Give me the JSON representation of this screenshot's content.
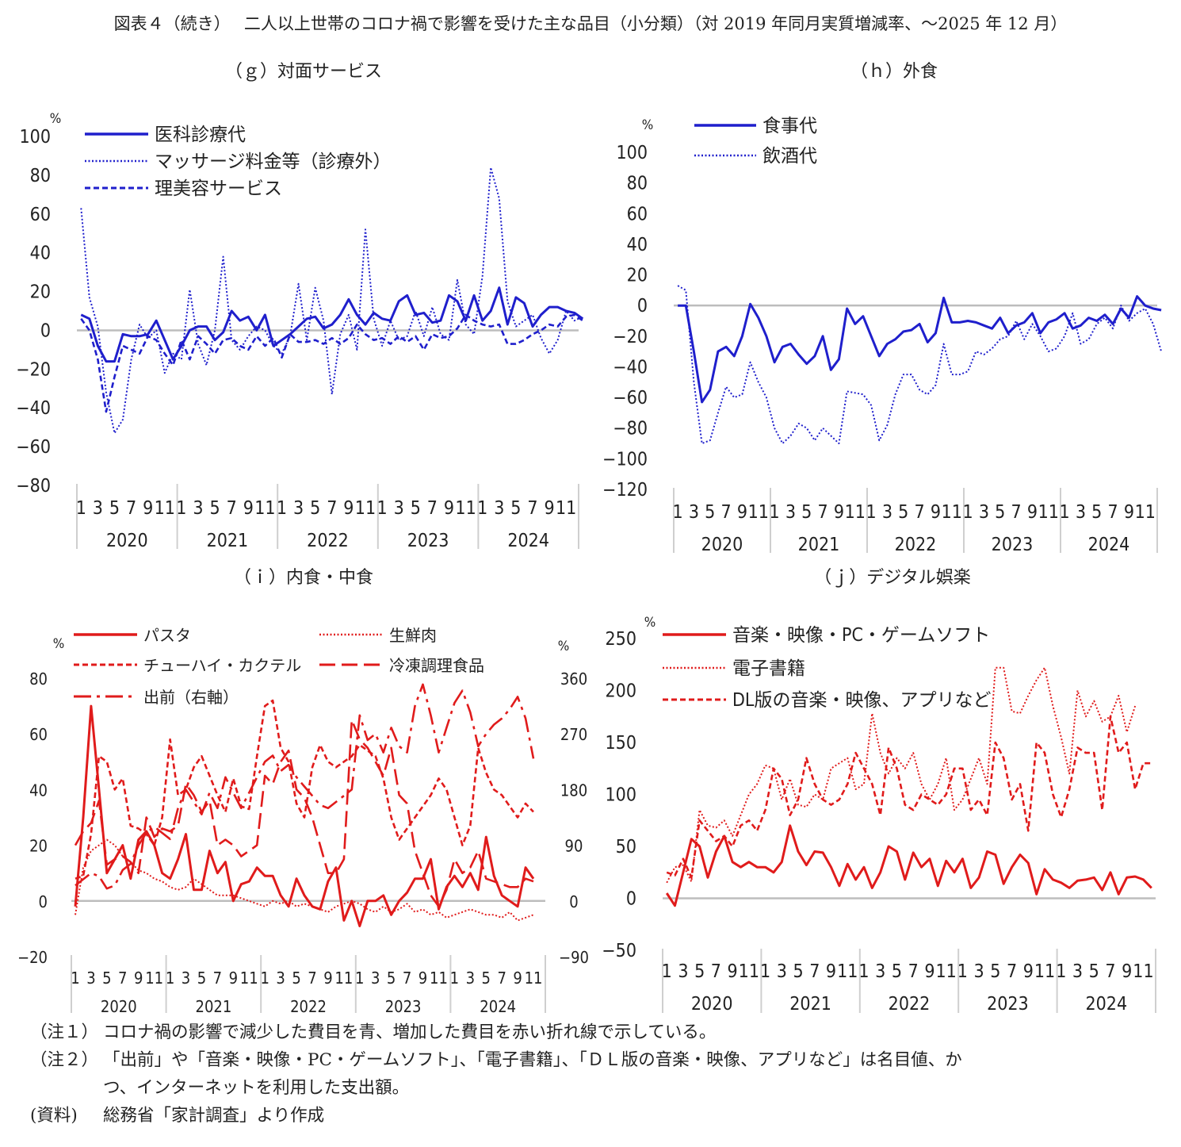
{
  "figure_title": "図表４（続き）　 二人以上世帯のコロナ禍で影響を受けた主な品目（小分類）（対 2019 年同月実質増減率、～2025 年 12 月）",
  "panels": {
    "g": {
      "title": "（ｇ）対面サービス"
    },
    "h": {
      "title": "（ｈ）外食"
    },
    "i": {
      "title": "（ｉ）内食・中食"
    },
    "j": {
      "title": "（ｊ）デジタル娯楽"
    }
  },
  "notes": [
    {
      "label": "（注１）",
      "text": "コロナ禍の影響で減少した費目を青、増加した費目を赤い折れ線で示している。"
    },
    {
      "label": "（注２）",
      "text": "「出前」や「音楽・映像・PC・ゲームソフト」、「電子書籍」、「ＤＬ版の音楽・映像、アプリなど」は名目値、か",
      "cont": "つ、インターネットを利用した支出額。"
    },
    {
      "label": "(資料)",
      "text": "総務省「家計調査」より作成"
    }
  ],
  "colors": {
    "decrease": "#1f1fcc",
    "increase": "#e01b1b"
  },
  "chart_data": [
    {
      "id": "g",
      "type": "line",
      "title": "（ｇ）対面サービス",
      "ylabel": "%",
      "ylim": [
        -80,
        100
      ],
      "ytick_step": 20,
      "years": [
        "2020",
        "2021",
        "2022",
        "2023",
        "2024"
      ],
      "month_ticks": [
        "1",
        "3",
        "5",
        "7",
        "9",
        "11"
      ],
      "legend_position": "top-left",
      "series": [
        {
          "name": "医科診療代",
          "style": "solid",
          "values": [
            8,
            6,
            -8,
            -16,
            -16,
            -2,
            -3,
            -3,
            -2,
            5,
            -5,
            -15,
            -8,
            0,
            2,
            2,
            -5,
            -1,
            10,
            5,
            7,
            0,
            8,
            -8,
            -5,
            -2,
            2,
            6,
            7,
            1,
            3,
            8,
            16,
            8,
            3,
            9,
            6,
            5,
            15,
            18,
            8,
            9,
            4,
            5,
            18,
            15,
            5,
            18,
            5,
            10,
            22,
            3,
            17,
            14,
            2,
            8,
            12,
            12,
            10,
            9,
            6
          ]
        },
        {
          "name": "マッサージ料金等（診療外）",
          "style": "dotted",
          "values": [
            63,
            17,
            2,
            -32,
            -53,
            -46,
            -15,
            3,
            -4,
            0,
            -22,
            -12,
            -15,
            21,
            -7,
            -18,
            0,
            38,
            -5,
            -10,
            -3,
            2,
            0,
            -8,
            -12,
            -3,
            24,
            -5,
            22,
            5,
            -33,
            -2,
            8,
            -10,
            52,
            6,
            -8,
            5,
            -5,
            -3,
            10,
            -3,
            12,
            -2,
            -5,
            26,
            3,
            -2,
            28,
            84,
            68,
            15,
            2,
            5,
            8,
            -4,
            -12,
            -5,
            10,
            5,
            7
          ]
        },
        {
          "name": "理美容サービス",
          "style": "dashed",
          "values": [
            6,
            0,
            -15,
            -42,
            -24,
            -8,
            -10,
            -12,
            -3,
            -5,
            -12,
            -18,
            -5,
            -15,
            -3,
            -7,
            -12,
            -5,
            -4,
            -8,
            -10,
            -3,
            -8,
            -4,
            -14,
            -2,
            -6,
            -6,
            -5,
            -7,
            -4,
            -7,
            -4,
            3,
            -2,
            -5,
            -4,
            -7,
            -3,
            -6,
            -3,
            -10,
            -2,
            -4,
            -3,
            1,
            8,
            5,
            3,
            2,
            3,
            -7,
            -7,
            -5,
            -2,
            0,
            3,
            2,
            7,
            8,
            5
          ]
        }
      ]
    },
    {
      "id": "h",
      "type": "line",
      "title": "（ｈ）外食",
      "ylabel": "%",
      "ylim": [
        -120,
        100
      ],
      "ytick_step": 20,
      "years": [
        "2020",
        "2021",
        "2022",
        "2023",
        "2024"
      ],
      "month_ticks": [
        "1",
        "3",
        "5",
        "7",
        "9",
        "11"
      ],
      "legend_position": "top-left",
      "series": [
        {
          "name": "食事代",
          "style": "solid",
          "values": [
            0,
            0,
            -30,
            -63,
            -55,
            -30,
            -27,
            -33,
            -20,
            1,
            -8,
            -20,
            -37,
            -27,
            -25,
            -32,
            -38,
            -33,
            -20,
            -42,
            -35,
            -2,
            -12,
            -7,
            -20,
            -33,
            -25,
            -22,
            -17,
            -16,
            -12,
            -24,
            -18,
            5,
            -11,
            -11,
            -10,
            -11,
            -13,
            -15,
            -8,
            -18,
            -13,
            -11,
            -5,
            -18,
            -11,
            -9,
            -5,
            -15,
            -13,
            -8,
            -10,
            -6,
            -12,
            -2,
            -8,
            6,
            0,
            -2,
            -3
          ]
        },
        {
          "name": "飲酒代",
          "style": "dotted",
          "values": [
            13,
            10,
            -50,
            -90,
            -88,
            -70,
            -53,
            -60,
            -58,
            -37,
            -50,
            -60,
            -80,
            -90,
            -85,
            -77,
            -80,
            -88,
            -80,
            -85,
            -90,
            -56,
            -57,
            -58,
            -65,
            -88,
            -78,
            -58,
            -45,
            -45,
            -55,
            -58,
            -52,
            -25,
            -45,
            -45,
            -43,
            -30,
            -32,
            -28,
            -22,
            -20,
            -10,
            -22,
            -12,
            -20,
            -30,
            -28,
            -20,
            -5,
            -25,
            -22,
            -12,
            -8,
            -15,
            0,
            -10,
            -5,
            -2,
            -12,
            -30
          ]
        }
      ]
    },
    {
      "id": "i",
      "type": "line",
      "title": "（ｉ）内食・中食",
      "ylabel": "%",
      "ylim": [
        -20,
        80
      ],
      "ytick_step": 20,
      "y2label": "%",
      "y2lim": [
        -90,
        360
      ],
      "y2tick_step": 90,
      "years": [
        "2020",
        "2021",
        "2022",
        "2023",
        "2024"
      ],
      "month_ticks": [
        "1",
        "3",
        "5",
        "7",
        "9",
        "11"
      ],
      "legend_position": "top (two columns)",
      "series": [
        {
          "name": "パスタ",
          "style": "solid",
          "axis": "left",
          "values": [
            -2,
            30,
            70,
            40,
            10,
            15,
            20,
            8,
            22,
            25,
            20,
            10,
            8,
            15,
            24,
            4,
            4,
            18,
            10,
            14,
            0,
            6,
            7,
            12,
            9,
            9,
            2,
            -2,
            8,
            2,
            -2,
            -3,
            7,
            12,
            -7,
            0,
            -9,
            0,
            0,
            2,
            -5,
            0,
            3,
            8,
            8,
            15,
            -3,
            5,
            9,
            5,
            10,
            4,
            23,
            9,
            2,
            0,
            -2,
            12,
            8
          ]
        },
        {
          "name": "生鮮肉",
          "style": "dotted",
          "axis": "left",
          "values": [
            -5,
            12,
            18,
            20,
            22,
            20,
            16,
            14,
            11,
            10,
            8,
            7,
            5,
            4,
            5,
            8,
            6,
            4,
            2,
            2,
            2,
            1,
            0,
            -1,
            -2,
            0,
            -1,
            0,
            -2,
            -1,
            -2,
            -3,
            -4,
            -2,
            -1,
            0,
            -1,
            -3,
            -4,
            -2,
            -4,
            -3,
            -1,
            -4,
            -3,
            -5,
            -4,
            -6,
            -5,
            -4,
            -3,
            -4,
            -5,
            -5,
            -6,
            -4,
            -7,
            -6,
            -5
          ]
        },
        {
          "name": "チューハイ・カクテル",
          "style": "dashed",
          "axis": "left",
          "values": [
            8,
            9,
            24,
            52,
            50,
            40,
            44,
            27,
            26,
            24,
            20,
            30,
            58,
            38,
            40,
            48,
            52,
            45,
            38,
            32,
            44,
            34,
            33,
            52,
            70,
            72,
            55,
            50,
            35,
            30,
            48,
            56,
            50,
            48,
            50,
            52,
            56,
            54,
            52,
            44,
            30,
            22,
            26,
            30,
            34,
            38,
            44,
            40,
            30,
            20,
            27,
            55,
            46,
            40,
            38,
            34,
            30,
            35,
            32
          ]
        },
        {
          "name": "冷凍調理食品",
          "style": "longdash",
          "axis": "left",
          "values": [
            20,
            25,
            28,
            36,
            13,
            15,
            16,
            14,
            10,
            30,
            23,
            26,
            25,
            27,
            42,
            38,
            32,
            36,
            20,
            22,
            20,
            16,
            18,
            20,
            45,
            42,
            50,
            54,
            40,
            37,
            30,
            20,
            10,
            10,
            15,
            65,
            58,
            55,
            50,
            45,
            55,
            38,
            35,
            18,
            10,
            2,
            -2,
            4,
            15,
            10,
            12,
            18,
            8,
            7,
            6,
            5,
            5,
            8,
            7
          ]
        },
        {
          "name": "出前（右軸）",
          "style": "dashdot",
          "axis": "right",
          "values": [
            25,
            35,
            45,
            40,
            20,
            25,
            50,
            60,
            90,
            110,
            120,
            110,
            100,
            150,
            180,
            160,
            140,
            175,
            150,
            200,
            175,
            150,
            175,
            200,
            225,
            235,
            210,
            220,
            200,
            185,
            170,
            155,
            150,
            160,
            170,
            180,
            300,
            260,
            270,
            240,
            280,
            250,
            240,
            315,
            350,
            300,
            240,
            280,
            320,
            340,
            305,
            250,
            270,
            285,
            295,
            310,
            330,
            295,
            230
          ]
        }
      ]
    },
    {
      "id": "j",
      "type": "line",
      "title": "（ｊ）デジタル娯楽",
      "ylabel": "%",
      "ylim": [
        -50,
        250
      ],
      "ytick_step": 50,
      "years": [
        "2020",
        "2021",
        "2022",
        "2023",
        "2024"
      ],
      "month_ticks": [
        "1",
        "3",
        "5",
        "7",
        "9",
        "11"
      ],
      "legend_position": "top-left",
      "series": [
        {
          "name": "音楽・映像・PC・ゲームソフト",
          "style": "solid",
          "values": [
            5,
            -7,
            25,
            57,
            50,
            20,
            45,
            60,
            35,
            30,
            35,
            30,
            30,
            25,
            35,
            70,
            45,
            32,
            45,
            44,
            30,
            12,
            33,
            18,
            30,
            10,
            25,
            50,
            45,
            18,
            44,
            30,
            38,
            12,
            36,
            25,
            38,
            10,
            20,
            45,
            42,
            14,
            30,
            42,
            34,
            4,
            28,
            18,
            15,
            10,
            17,
            18,
            20,
            8,
            25,
            4,
            20,
            21,
            18,
            10
          ]
        },
        {
          "name": "電子書籍",
          "style": "dotted",
          "values": [
            15,
            30,
            32,
            16,
            85,
            70,
            68,
            75,
            60,
            80,
            100,
            110,
            128,
            125,
            95,
            115,
            90,
            88,
            100,
            95,
            125,
            130,
            135,
            105,
            110,
            178,
            140,
            120,
            135,
            125,
            140,
            110,
            95,
            110,
            135,
            85,
            95,
            115,
            135,
            110,
            222,
            222,
            180,
            178,
            195,
            210,
            222,
            185,
            155,
            120,
            200,
            175,
            190,
            170,
            175,
            195,
            160,
            185
          ]
        },
        {
          "name": "DL版の音楽・映像、アプリなど",
          "style": "dashed",
          "values": [
            25,
            22,
            38,
            20,
            75,
            65,
            55,
            60,
            50,
            70,
            75,
            65,
            85,
            125,
            115,
            80,
            95,
            135,
            110,
            95,
            90,
            95,
            110,
            140,
            125,
            110,
            80,
            145,
            125,
            90,
            85,
            100,
            95,
            90,
            100,
            125,
            125,
            85,
            95,
            80,
            150,
            135,
            95,
            110,
            65,
            150,
            140,
            100,
            78,
            105,
            145,
            140,
            140,
            85,
            175,
            140,
            150,
            105,
            130,
            130
          ]
        }
      ]
    }
  ]
}
